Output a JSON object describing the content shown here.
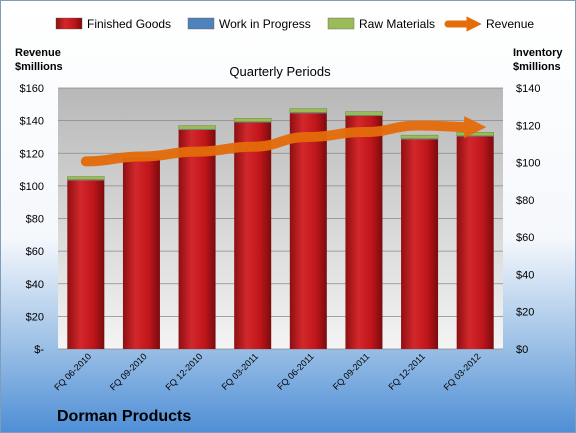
{
  "chart_data": {
    "type": "bar",
    "title": "Quarterly Periods",
    "company": "Dorman Products",
    "categories": [
      "FQ 06-2010",
      "FQ 09-2010",
      "FQ 12-2010",
      "FQ 03-2011",
      "FQ 06-2011",
      "FQ 09-2011",
      "FQ 12-2011",
      "FQ 03-2012"
    ],
    "series": [
      {
        "name": "Finished Goods",
        "axis": "right",
        "stack": true,
        "color": "#c0161b",
        "values": [
          90.5,
          102.5,
          117.5,
          121.5,
          126.5,
          125.0,
          112.5,
          114.0
        ]
      },
      {
        "name": "Work in Progress",
        "axis": "right",
        "stack": true,
        "color": "#4f81bd",
        "values": [
          0.4,
          0.4,
          0.4,
          0.4,
          0.4,
          0.4,
          0.4,
          0.4
        ]
      },
      {
        "name": "Raw Materials",
        "axis": "right",
        "stack": true,
        "color": "#9bbb59",
        "values": [
          1.6,
          1.8,
          1.9,
          1.8,
          2.0,
          1.9,
          1.8,
          1.8
        ]
      },
      {
        "name": "Revenue",
        "axis": "left",
        "type": "line",
        "color": "#e46c0a",
        "values": [
          115,
          118,
          121,
          124,
          130,
          133,
          137,
          136
        ]
      }
    ],
    "yleft": {
      "label": "Revenue\n$millions",
      "range": [
        0,
        160
      ],
      "ticks": [
        0,
        20,
        40,
        60,
        80,
        100,
        120,
        140,
        160
      ],
      "tick_labels": [
        "$-",
        "$20",
        "$40",
        "$60",
        "$80",
        "$100",
        "$120",
        "$140",
        "$160"
      ]
    },
    "yright": {
      "label": "Inventory\n$millions",
      "range": [
        0,
        140
      ],
      "ticks": [
        0,
        20,
        40,
        60,
        80,
        100,
        120,
        140
      ],
      "tick_labels": [
        "$0",
        "$20",
        "$40",
        "$60",
        "$80",
        "$100",
        "$120",
        "$140"
      ]
    },
    "grid": true,
    "legend": "top"
  }
}
